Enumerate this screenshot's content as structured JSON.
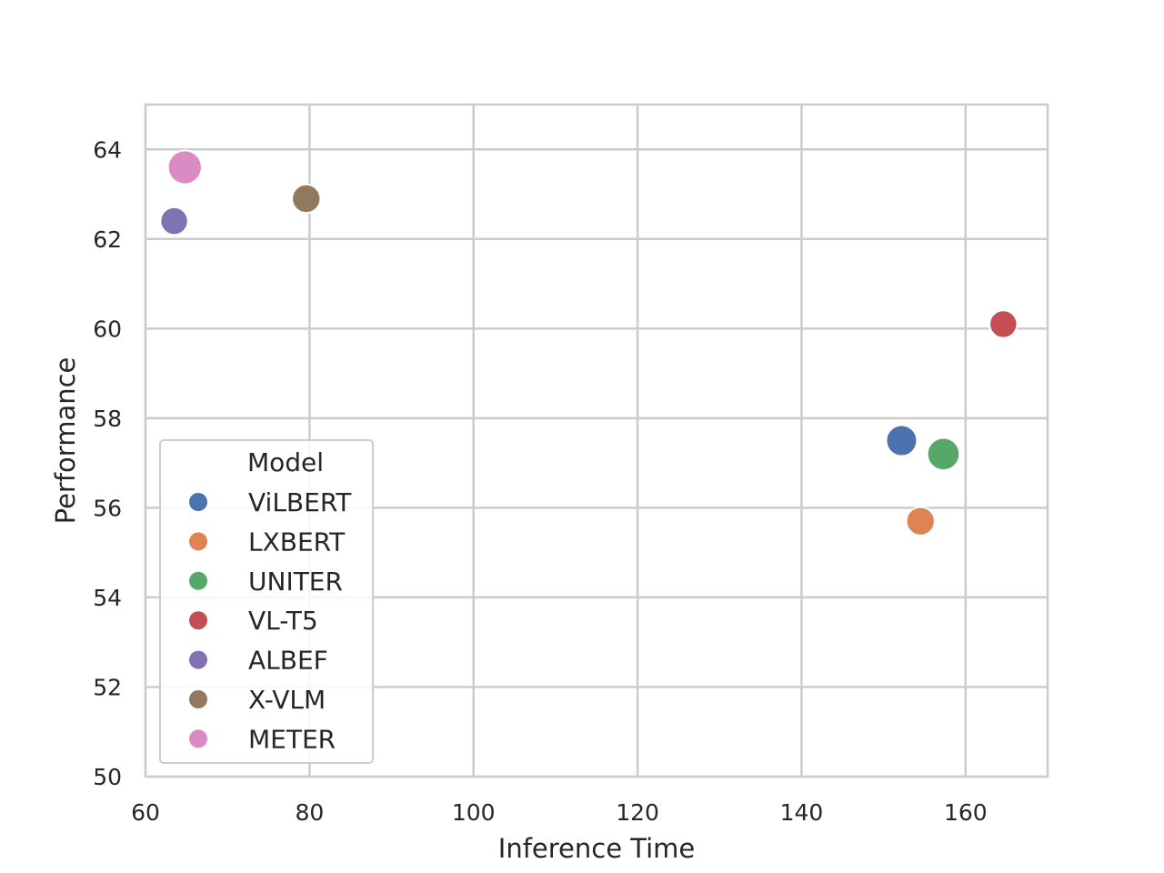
{
  "chart_data": {
    "type": "scatter",
    "title": "",
    "xlabel": "Inference Time",
    "ylabel": "Performance",
    "xlim": [
      60,
      170
    ],
    "ylim": [
      50,
      65
    ],
    "xticks": [
      60,
      80,
      100,
      120,
      140,
      160
    ],
    "yticks": [
      50,
      52,
      54,
      56,
      58,
      60,
      62,
      64
    ],
    "grid": true,
    "legend": {
      "title": "Model",
      "placement": "lower-left"
    },
    "series": [
      {
        "name": "ViLBERT",
        "color": "#4c72b0",
        "x": [
          152.2
        ],
        "y": [
          57.5
        ],
        "size": 1.0
      },
      {
        "name": "LXBERT",
        "color": "#dd8452",
        "x": [
          154.5
        ],
        "y": [
          55.7
        ],
        "size": 0.85
      },
      {
        "name": "UNITER",
        "color": "#55a868",
        "x": [
          157.3
        ],
        "y": [
          57.2
        ],
        "size": 1.1
      },
      {
        "name": "VL-T5",
        "color": "#c44e52",
        "x": [
          164.6
        ],
        "y": [
          60.1
        ],
        "size": 0.8
      },
      {
        "name": "ALBEF",
        "color": "#8172b3",
        "x": [
          63.5
        ],
        "y": [
          62.4
        ],
        "size": 0.8
      },
      {
        "name": "X-VLM",
        "color": "#937860",
        "x": [
          79.6
        ],
        "y": [
          62.9
        ],
        "size": 0.85
      },
      {
        "name": "METER",
        "color": "#da8bc3",
        "x": [
          64.8
        ],
        "y": [
          63.6
        ],
        "size": 1.2
      }
    ]
  }
}
